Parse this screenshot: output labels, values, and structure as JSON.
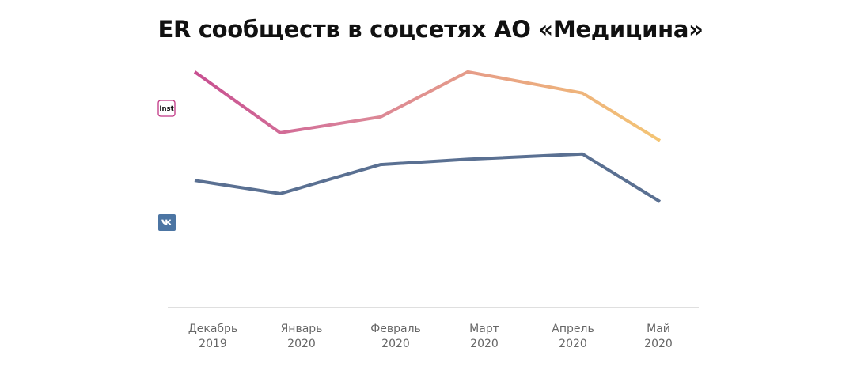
{
  "chart_data": {
    "type": "line",
    "title": "ER сообществ в соцсетях АО «Медицина»",
    "categories": [
      [
        "Декабрь",
        "2019"
      ],
      [
        "Январь",
        "2020"
      ],
      [
        "Февраль",
        "2020"
      ],
      [
        "Март",
        "2020"
      ],
      [
        "Апрель",
        "2020"
      ],
      [
        "Май",
        "2020"
      ]
    ],
    "series": [
      {
        "name": "Inst",
        "icon": "instagram-icon",
        "gradient": [
          "#c84f91",
          "#d9819a",
          "#e9a483",
          "#f4c574"
        ],
        "values": [
          8.9,
          6.6,
          7.2,
          8.9,
          8.1,
          6.3
        ]
      },
      {
        "name": "",
        "icon": "vk-icon",
        "color": "#5a7092",
        "values": [
          4.8,
          4.3,
          5.4,
          5.6,
          5.8,
          4.0
        ]
      }
    ],
    "ylim": [
      0,
      10
    ],
    "xlabel": "",
    "ylabel": "",
    "grid": false,
    "legend": "left"
  },
  "colors": {
    "axis": "#cccccc",
    "tick_text": "#666666",
    "vk_brand": "#4c75a3",
    "inst_border": "#c13584"
  }
}
